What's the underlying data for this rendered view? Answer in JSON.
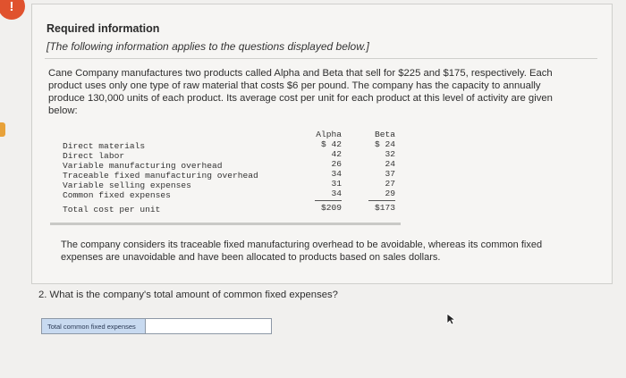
{
  "alert_glyph": "!",
  "heading": "Required information",
  "note": "[The following information applies to the questions displayed below.]",
  "intro": "Cane Company manufactures two products called Alpha and Beta that sell for $225 and $175, respectively. Each product uses only one type of raw material that costs $6 per pound. The company has the capacity to annually produce 130,000 units of each product. Its average cost per unit for each product at this level of activity are given below:",
  "cost_table": {
    "headers": [
      "Alpha",
      "Beta"
    ],
    "rows": [
      {
        "label": "Direct materials",
        "alpha": "$ 42",
        "beta": "$ 24"
      },
      {
        "label": "Direct labor",
        "alpha": "42",
        "beta": "32"
      },
      {
        "label": "Variable manufacturing overhead",
        "alpha": "26",
        "beta": "24"
      },
      {
        "label": "Traceable fixed manufacturing overhead",
        "alpha": "34",
        "beta": "37"
      },
      {
        "label": "Variable selling expenses",
        "alpha": "31",
        "beta": "27"
      },
      {
        "label": "Common fixed expenses",
        "alpha": "34",
        "beta": "29"
      }
    ],
    "total": {
      "label": "Total cost per unit",
      "alpha": "$209",
      "beta": "$173"
    }
  },
  "closing": "The company considers its traceable fixed manufacturing overhead to be avoidable, whereas its common fixed expenses are unavoidable and have been allocated to products based on sales dollars.",
  "question": "2. What is the company's total amount of common fixed expenses?",
  "answer": {
    "label": "Total common fixed expenses",
    "value": ""
  },
  "colors": {
    "alert": "#e0522e",
    "answer_label_bg": "#c8daf0"
  }
}
